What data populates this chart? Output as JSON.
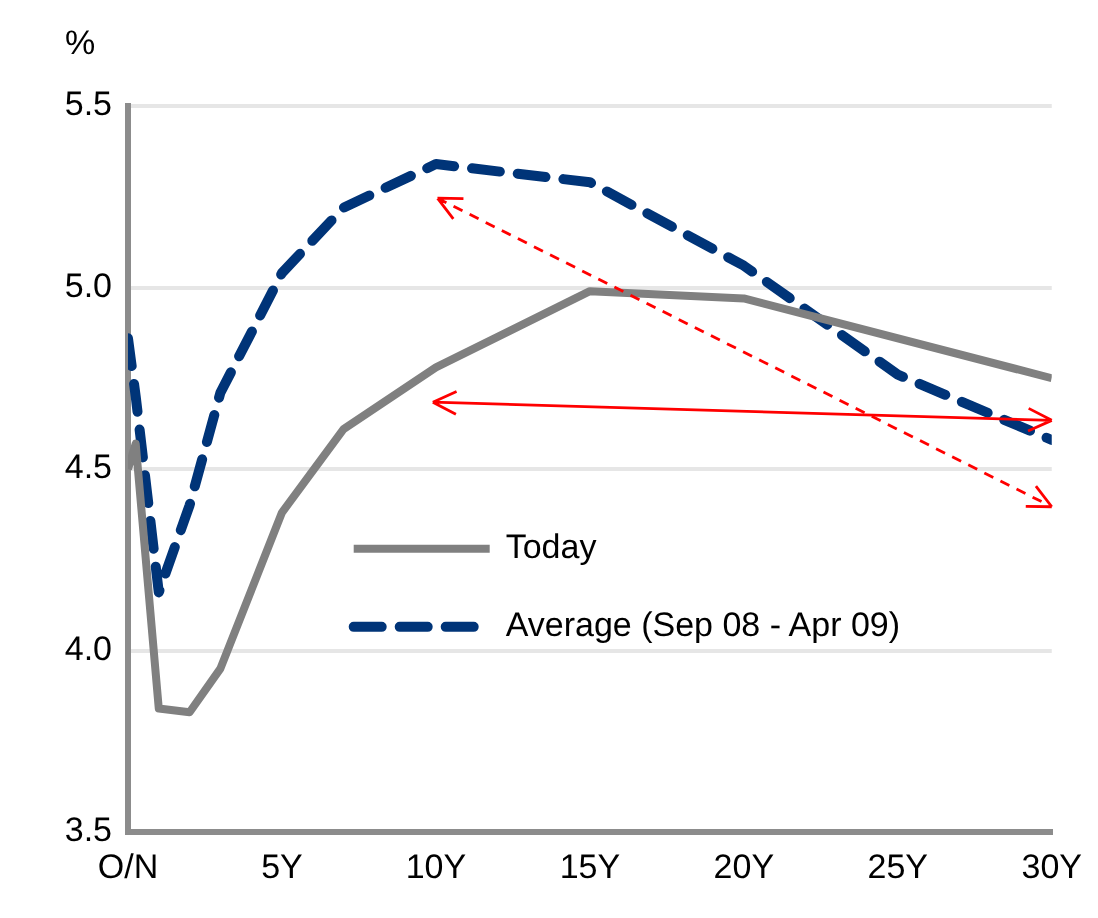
{
  "chart_data": {
    "type": "line",
    "ylabel": "%",
    "x": [
      0,
      0.25,
      1,
      2,
      3,
      5,
      7,
      10,
      15,
      20,
      30
    ],
    "xlim": [
      0,
      30
    ],
    "xticks": [
      {
        "value": 0,
        "label": "O/N"
      },
      {
        "value": 5,
        "label": "5Y"
      },
      {
        "value": 10,
        "label": "10Y"
      },
      {
        "value": 15,
        "label": "15Y"
      },
      {
        "value": 20,
        "label": "20Y"
      },
      {
        "value": 25,
        "label": "25Y"
      },
      {
        "value": 30,
        "label": "30Y"
      }
    ],
    "ylim": [
      3.5,
      5.5
    ],
    "yticks": [
      {
        "value": 3.5,
        "label": "3.5"
      },
      {
        "value": 4,
        "label": "4.0"
      },
      {
        "value": 4.5,
        "label": "4.5"
      },
      {
        "value": 5,
        "label": "5.0"
      },
      {
        "value": 5.5,
        "label": "5.5"
      }
    ],
    "series": [
      {
        "name": "Today",
        "color": "#808080",
        "line_style": "solid",
        "values": [
          4.5,
          4.57,
          3.84,
          3.83,
          3.95,
          4.38,
          4.61,
          4.78,
          4.99,
          4.97,
          4.75
        ]
      },
      {
        "name": "Average (Sep 08 - Apr 09)",
        "color": "#003478",
        "line_style": "dashed",
        "x": [
          0,
          0.25,
          1,
          2,
          3,
          5,
          7,
          10,
          15,
          20,
          25,
          30
        ],
        "values": [
          4.86,
          4.7,
          4.16,
          4.4,
          4.71,
          5.04,
          5.22,
          5.34,
          5.29,
          5.06,
          4.76,
          4.58
        ]
      }
    ],
    "grid": "y",
    "legend": "center",
    "marker": "none"
  }
}
